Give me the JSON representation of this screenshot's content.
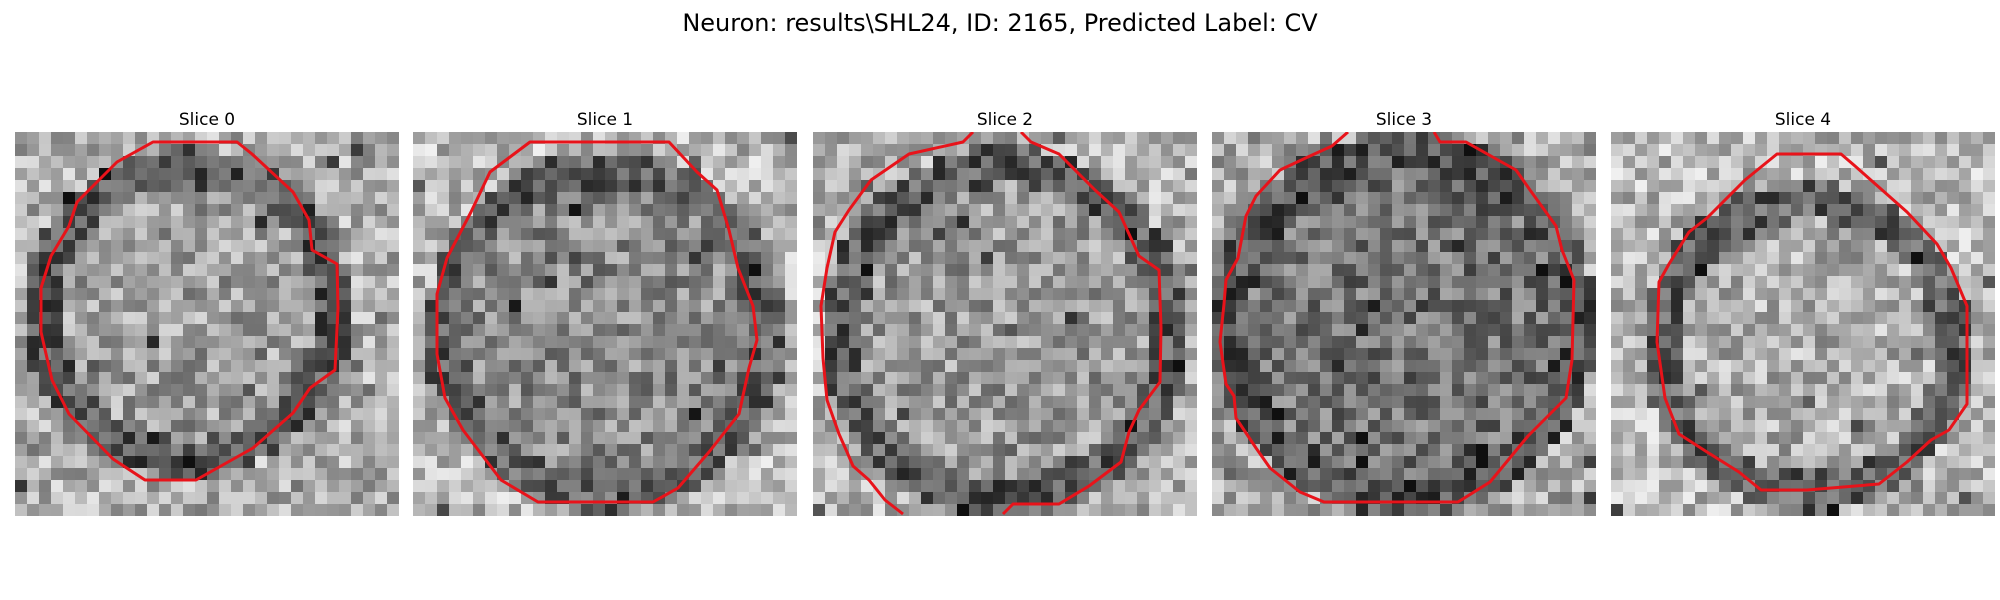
{
  "figure": {
    "title": "Neuron: results\\SHL24, ID: 2165, Predicted Label: CV"
  },
  "contour_color": "#e8131a",
  "slices": [
    {
      "title": "Slice 0"
    },
    {
      "title": "Slice 1"
    },
    {
      "title": "Slice 2"
    },
    {
      "title": "Slice 3"
    },
    {
      "title": "Slice 4"
    }
  ]
}
